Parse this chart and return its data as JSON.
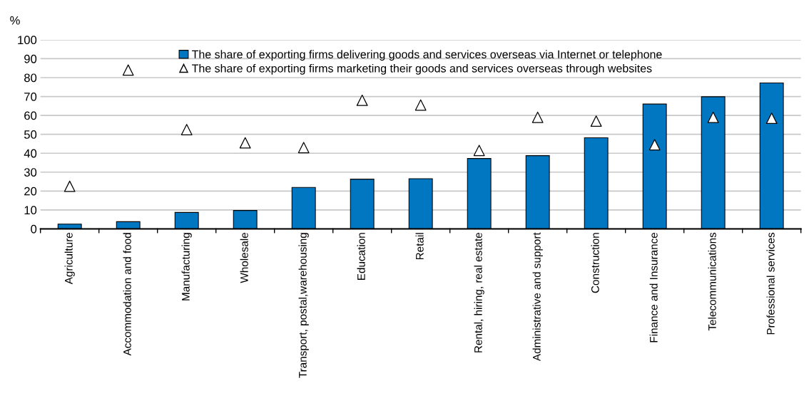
{
  "chart_data": {
    "type": "bar",
    "ylabel": "%",
    "categories": [
      "Agriculture",
      "Accommodation and food",
      "Manufacturing",
      "Wholesale",
      "Transport, postal,warehousing",
      "Education",
      "Retail",
      "Rental, hiring, real estate",
      "Administrative and support",
      "Construction",
      "Finance and Insurance",
      "Telecommunications",
      "Professional services"
    ],
    "series": [
      {
        "name": "The share of exporting firms delivering goods and services overseas via Internet or telephone",
        "color": "#0077c0",
        "values": [
          2.5,
          3.8,
          8.7,
          9.7,
          21.9,
          26.3,
          26.5,
          37.2,
          38.7,
          48.2,
          66.0,
          69.9,
          77.2
        ]
      },
      {
        "name": "The share of exporting firms marketing their goods and services overseas through websites",
        "type": "scatter",
        "color": "#ffffff",
        "marker": "triangle",
        "values": [
          22.5,
          84,
          52.5,
          45.5,
          43,
          68,
          65.5,
          41.5,
          59,
          57,
          44.5,
          59,
          58.5
        ]
      }
    ],
    "ylim": [
      0,
      100
    ],
    "yticks": [
      0,
      10,
      20,
      30,
      40,
      50,
      60,
      70,
      80,
      90,
      100
    ],
    "grid": "y",
    "legend": "top"
  }
}
